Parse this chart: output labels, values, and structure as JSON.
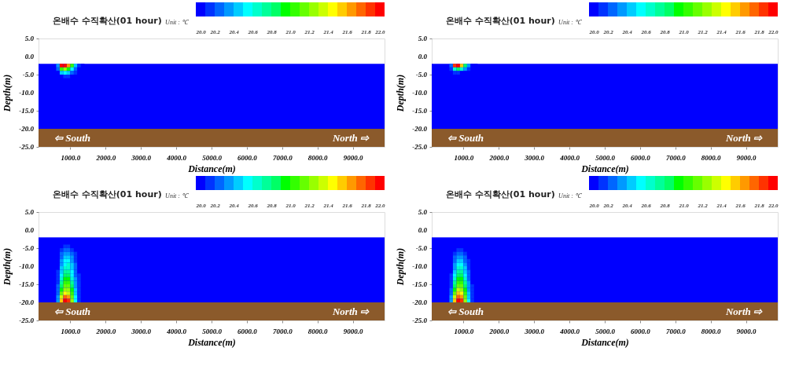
{
  "chart_data": [
    {
      "type": "heatmap",
      "title": "온배수 수직확산(01 hour)",
      "xlabel": "Distance(m)",
      "ylabel": "Depth(m)",
      "clabel": "Unit : ℃",
      "clim": [
        20.0,
        22.0
      ],
      "cticks": [
        {
          "value": 20.0,
          "label": "20.0"
        },
        {
          "value": 20.2,
          "label": "20.2"
        },
        {
          "value": 20.4,
          "label": "20.4"
        },
        {
          "value": 20.6,
          "label": "20.6"
        },
        {
          "value": 20.8,
          "label": "20.8"
        },
        {
          "value": 21.0,
          "label": "21.0"
        },
        {
          "value": 21.2,
          "label": "21.2"
        },
        {
          "value": 21.4,
          "label": "21.4"
        },
        {
          "value": 21.6,
          "label": "21.6"
        },
        {
          "value": 21.8,
          "label": "21.8"
        },
        {
          "value": 22.0,
          "label": "22.0"
        }
      ],
      "colors": [
        "#0000ff",
        "#0033ff",
        "#0066ff",
        "#0099ff",
        "#00ccff",
        "#00ffff",
        "#00ffcc",
        "#00ff99",
        "#00ff66",
        "#00ff00",
        "#33ff00",
        "#66ff00",
        "#99ff00",
        "#ccff00",
        "#ffff00",
        "#ffcc00",
        "#ff9900",
        "#ff6600",
        "#ff3300",
        "#ff0000"
      ],
      "xlim": [
        100,
        9900
      ],
      "ylim": [
        -25,
        5
      ],
      "xticks": [
        {
          "value": 1000,
          "label": "1000.0"
        },
        {
          "value": 2000,
          "label": "2000.0"
        },
        {
          "value": 3000,
          "label": "3000.0"
        },
        {
          "value": 4000,
          "label": "4000.0"
        },
        {
          "value": 5000,
          "label": "5000.0"
        },
        {
          "value": 6000,
          "label": "6000.0"
        },
        {
          "value": 7000,
          "label": "7000.0"
        },
        {
          "value": 8000,
          "label": "8000.0"
        },
        {
          "value": 9000,
          "label": "9000.0"
        }
      ],
      "yticks": [
        {
          "value": 5,
          "label": "5.0"
        },
        {
          "value": 0,
          "label": "0.0"
        },
        {
          "value": -5,
          "label": "-5.0"
        },
        {
          "value": -10,
          "label": "-10.0"
        },
        {
          "value": -15,
          "label": "-15.0"
        },
        {
          "value": -20,
          "label": "-20.0"
        },
        {
          "value": -25,
          "label": "-25.0"
        }
      ],
      "bands": [
        {
          "axis": "y",
          "from": -20,
          "to": -2,
          "color": "#0000ff"
        },
        {
          "axis": "y",
          "from": -25,
          "to": -20,
          "color": "#8b5a2b"
        }
      ],
      "annotations": [
        "⇦ South",
        "North ⇨"
      ],
      "x": [
        650,
        750,
        850,
        950,
        1050,
        1150,
        1250,
        1350
      ],
      "y": [
        -2.5,
        -3.5,
        -4.5,
        -5.5
      ],
      "cells": [
        [
          20.3,
          21.9,
          22.0,
          21.6,
          21.0,
          20.4,
          20.1,
          20.0
        ],
        [
          20.2,
          21.0,
          21.2,
          20.9,
          20.5,
          20.2,
          20.0,
          20.0
        ],
        [
          20.0,
          20.4,
          20.5,
          20.4,
          20.2,
          20.1,
          20.0,
          20.0
        ],
        [
          20.0,
          20.0,
          20.1,
          20.1,
          20.0,
          20.0,
          20.0,
          20.0
        ]
      ]
    },
    {
      "type": "heatmap",
      "title": "온배수 수직확산(01 hour)",
      "xlabel": "Distance(m)",
      "ylabel": "Depth(m)",
      "clabel": "Unit : ℃",
      "clim": [
        20.0,
        22.0
      ],
      "cticks": [
        {
          "value": 20.0,
          "label": "20.0"
        },
        {
          "value": 20.2,
          "label": "20.2"
        },
        {
          "value": 20.4,
          "label": "20.4"
        },
        {
          "value": 20.6,
          "label": "20.6"
        },
        {
          "value": 20.8,
          "label": "20.8"
        },
        {
          "value": 21.0,
          "label": "21.0"
        },
        {
          "value": 21.2,
          "label": "21.2"
        },
        {
          "value": 21.4,
          "label": "21.4"
        },
        {
          "value": 21.6,
          "label": "21.6"
        },
        {
          "value": 21.8,
          "label": "21.8"
        },
        {
          "value": 22.0,
          "label": "22.0"
        }
      ],
      "colors": [
        "#0000ff",
        "#0033ff",
        "#0066ff",
        "#0099ff",
        "#00ccff",
        "#00ffff",
        "#00ffcc",
        "#00ff99",
        "#00ff66",
        "#00ff00",
        "#33ff00",
        "#66ff00",
        "#99ff00",
        "#ccff00",
        "#ffff00",
        "#ffcc00",
        "#ff9900",
        "#ff6600",
        "#ff3300",
        "#ff0000"
      ],
      "xlim": [
        100,
        9900
      ],
      "ylim": [
        -25,
        5
      ],
      "xticks": [
        {
          "value": 1000,
          "label": "1000.0"
        },
        {
          "value": 2000,
          "label": "2000.0"
        },
        {
          "value": 3000,
          "label": "3000.0"
        },
        {
          "value": 4000,
          "label": "4000.0"
        },
        {
          "value": 5000,
          "label": "5000.0"
        },
        {
          "value": 6000,
          "label": "6000.0"
        },
        {
          "value": 7000,
          "label": "7000.0"
        },
        {
          "value": 8000,
          "label": "8000.0"
        },
        {
          "value": 9000,
          "label": "9000.0"
        }
      ],
      "yticks": [
        {
          "value": 5,
          "label": "5.0"
        },
        {
          "value": 0,
          "label": "0.0"
        },
        {
          "value": -5,
          "label": "-5.0"
        },
        {
          "value": -10,
          "label": "-10.0"
        },
        {
          "value": -15,
          "label": "-15.0"
        },
        {
          "value": -20,
          "label": "-20.0"
        },
        {
          "value": -25,
          "label": "-25.0"
        }
      ],
      "bands": [
        {
          "axis": "y",
          "from": -20,
          "to": -2,
          "color": "#0000ff"
        },
        {
          "axis": "y",
          "from": -25,
          "to": -20,
          "color": "#8b5a2b"
        }
      ],
      "annotations": [
        "⇦ South",
        "North ⇨"
      ],
      "x": [
        650,
        750,
        850,
        950,
        1050,
        1150,
        1250,
        1350
      ],
      "y": [
        -2.5,
        -3.5,
        -4.5,
        -5.5
      ],
      "cells": [
        [
          20.2,
          21.8,
          22.0,
          21.5,
          20.8,
          20.3,
          20.0,
          20.0
        ],
        [
          20.1,
          20.6,
          20.8,
          20.6,
          20.3,
          20.1,
          20.0,
          20.0
        ],
        [
          20.0,
          20.1,
          20.1,
          20.0,
          20.0,
          20.0,
          20.0,
          20.0
        ],
        [
          20.0,
          20.0,
          20.0,
          20.0,
          20.0,
          20.0,
          20.0,
          20.0
        ]
      ]
    },
    {
      "type": "heatmap",
      "title": "온배수 수직확산(01 hour)",
      "xlabel": "Distance(m)",
      "ylabel": "Depth(m)",
      "clabel": "Unit : ℃",
      "clim": [
        20.0,
        22.0
      ],
      "cticks": [
        {
          "value": 20.0,
          "label": "20.0"
        },
        {
          "value": 20.2,
          "label": "20.2"
        },
        {
          "value": 20.4,
          "label": "20.4"
        },
        {
          "value": 20.6,
          "label": "20.6"
        },
        {
          "value": 20.8,
          "label": "20.8"
        },
        {
          "value": 21.0,
          "label": "21.0"
        },
        {
          "value": 21.2,
          "label": "21.2"
        },
        {
          "value": 21.4,
          "label": "21.4"
        },
        {
          "value": 21.6,
          "label": "21.6"
        },
        {
          "value": 21.8,
          "label": "21.8"
        },
        {
          "value": 22.0,
          "label": "22.0"
        }
      ],
      "colors": [
        "#0000ff",
        "#0033ff",
        "#0066ff",
        "#0099ff",
        "#00ccff",
        "#00ffff",
        "#00ffcc",
        "#00ff99",
        "#00ff66",
        "#00ff00",
        "#33ff00",
        "#66ff00",
        "#99ff00",
        "#ccff00",
        "#ffff00",
        "#ffcc00",
        "#ff9900",
        "#ff6600",
        "#ff3300",
        "#ff0000"
      ],
      "xlim": [
        100,
        9900
      ],
      "ylim": [
        -25,
        5
      ],
      "xticks": [
        {
          "value": 1000,
          "label": "1000.0"
        },
        {
          "value": 2000,
          "label": "2000.0"
        },
        {
          "value": 3000,
          "label": "3000.0"
        },
        {
          "value": 4000,
          "label": "4000.0"
        },
        {
          "value": 5000,
          "label": "5000.0"
        },
        {
          "value": 6000,
          "label": "6000.0"
        },
        {
          "value": 7000,
          "label": "7000.0"
        },
        {
          "value": 8000,
          "label": "8000.0"
        },
        {
          "value": 9000,
          "label": "9000.0"
        }
      ],
      "yticks": [
        {
          "value": 5,
          "label": "5.0"
        },
        {
          "value": 0,
          "label": "0.0"
        },
        {
          "value": -5,
          "label": "-5.0"
        },
        {
          "value": -10,
          "label": "-10.0"
        },
        {
          "value": -15,
          "label": "-15.0"
        },
        {
          "value": -20,
          "label": "-20.0"
        },
        {
          "value": -25,
          "label": "-25.0"
        }
      ],
      "bands": [
        {
          "axis": "y",
          "from": -20,
          "to": -2,
          "color": "#0000ff"
        },
        {
          "axis": "y",
          "from": -25,
          "to": -20,
          "color": "#8b5a2b"
        }
      ],
      "annotations": [
        "⇦ South",
        "North ⇨"
      ],
      "x": [
        650,
        750,
        850,
        950,
        1050,
        1150,
        1250,
        1350
      ],
      "y": [
        -4.5,
        -5.5,
        -6.5,
        -7.5,
        -8.5,
        -9.5,
        -10.5,
        -11.5,
        -12.5,
        -13.5,
        -14.5,
        -15.5,
        -16.5,
        -17.5,
        -18.5,
        -19.5
      ],
      "cells": [
        [
          20.0,
          20.0,
          20.1,
          20.1,
          20.0,
          20.0,
          20.0,
          20.0
        ],
        [
          20.0,
          20.1,
          20.2,
          20.2,
          20.1,
          20.0,
          20.0,
          20.0
        ],
        [
          20.0,
          20.2,
          20.3,
          20.3,
          20.2,
          20.1,
          20.0,
          20.0
        ],
        [
          20.0,
          20.2,
          20.4,
          20.4,
          20.3,
          20.1,
          20.0,
          20.0
        ],
        [
          20.0,
          20.3,
          20.5,
          20.5,
          20.3,
          20.1,
          20.0,
          20.0
        ],
        [
          20.0,
          20.3,
          20.5,
          20.6,
          20.4,
          20.2,
          20.0,
          20.0
        ],
        [
          20.0,
          20.4,
          20.6,
          20.6,
          20.4,
          20.2,
          20.0,
          20.0
        ],
        [
          20.1,
          20.4,
          20.7,
          20.7,
          20.5,
          20.2,
          20.0,
          20.0
        ],
        [
          20.1,
          20.5,
          20.8,
          20.8,
          20.5,
          20.2,
          20.1,
          20.0
        ],
        [
          20.1,
          20.6,
          20.9,
          20.9,
          20.6,
          20.3,
          20.1,
          20.0
        ],
        [
          20.1,
          20.7,
          21.0,
          21.0,
          20.7,
          20.3,
          20.1,
          20.0
        ],
        [
          20.2,
          20.8,
          21.1,
          21.1,
          20.8,
          20.3,
          20.1,
          20.0
        ],
        [
          20.2,
          20.9,
          21.2,
          21.2,
          20.9,
          20.4,
          20.1,
          20.0
        ],
        [
          20.2,
          21.1,
          21.4,
          21.3,
          21.0,
          20.4,
          20.1,
          20.0
        ],
        [
          20.3,
          21.3,
          21.7,
          21.6,
          21.1,
          20.5,
          20.1,
          20.0
        ],
        [
          20.3,
          21.5,
          21.9,
          21.8,
          21.2,
          20.5,
          20.1,
          20.0
        ]
      ]
    },
    {
      "type": "heatmap",
      "title": "온배수 수직확산(01 hour)",
      "xlabel": "Distance(m)",
      "ylabel": "Depth(m)",
      "clabel": "Unit : ℃",
      "clim": [
        20.0,
        22.0
      ],
      "cticks": [
        {
          "value": 20.0,
          "label": "20.0"
        },
        {
          "value": 20.2,
          "label": "20.2"
        },
        {
          "value": 20.4,
          "label": "20.4"
        },
        {
          "value": 20.6,
          "label": "20.6"
        },
        {
          "value": 20.8,
          "label": "20.8"
        },
        {
          "value": 21.0,
          "label": "21.0"
        },
        {
          "value": 21.2,
          "label": "21.2"
        },
        {
          "value": 21.4,
          "label": "21.4"
        },
        {
          "value": 21.6,
          "label": "21.6"
        },
        {
          "value": 21.8,
          "label": "21.8"
        },
        {
          "value": 22.0,
          "label": "22.0"
        }
      ],
      "colors": [
        "#0000ff",
        "#0033ff",
        "#0066ff",
        "#0099ff",
        "#00ccff",
        "#00ffff",
        "#00ffcc",
        "#00ff99",
        "#00ff66",
        "#00ff00",
        "#33ff00",
        "#66ff00",
        "#99ff00",
        "#ccff00",
        "#ffff00",
        "#ffcc00",
        "#ff9900",
        "#ff6600",
        "#ff3300",
        "#ff0000"
      ],
      "xlim": [
        100,
        9900
      ],
      "ylim": [
        -25,
        5
      ],
      "xticks": [
        {
          "value": 1000,
          "label": "1000.0"
        },
        {
          "value": 2000,
          "label": "2000.0"
        },
        {
          "value": 3000,
          "label": "3000.0"
        },
        {
          "value": 4000,
          "label": "4000.0"
        },
        {
          "value": 5000,
          "label": "5000.0"
        },
        {
          "value": 6000,
          "label": "6000.0"
        },
        {
          "value": 7000,
          "label": "7000.0"
        },
        {
          "value": 8000,
          "label": "8000.0"
        },
        {
          "value": 9000,
          "label": "9000.0"
        }
      ],
      "yticks": [
        {
          "value": 5,
          "label": "5.0"
        },
        {
          "value": 0,
          "label": "0.0"
        },
        {
          "value": -5,
          "label": "-5.0"
        },
        {
          "value": -10,
          "label": "-10.0"
        },
        {
          "value": -15,
          "label": "-15.0"
        },
        {
          "value": -20,
          "label": "-20.0"
        },
        {
          "value": -25,
          "label": "-25.0"
        }
      ],
      "bands": [
        {
          "axis": "y",
          "from": -20,
          "to": -2,
          "color": "#0000ff"
        },
        {
          "axis": "y",
          "from": -25,
          "to": -20,
          "color": "#8b5a2b"
        }
      ],
      "annotations": [
        "⇦ South",
        "North ⇨"
      ],
      "x": [
        650,
        750,
        850,
        950,
        1050,
        1150,
        1250,
        1350
      ],
      "y": [
        -5.5,
        -6.5,
        -7.5,
        -8.5,
        -9.5,
        -10.5,
        -11.5,
        -12.5,
        -13.5,
        -14.5,
        -15.5,
        -16.5,
        -17.5,
        -18.5,
        -19.5
      ],
      "cells": [
        [
          20.0,
          20.0,
          20.1,
          20.1,
          20.0,
          20.0,
          20.0,
          20.0
        ],
        [
          20.0,
          20.1,
          20.2,
          20.2,
          20.1,
          20.0,
          20.0,
          20.0
        ],
        [
          20.0,
          20.2,
          20.3,
          20.3,
          20.2,
          20.0,
          20.0,
          20.0
        ],
        [
          20.0,
          20.2,
          20.4,
          20.4,
          20.2,
          20.1,
          20.0,
          20.0
        ],
        [
          20.0,
          20.3,
          20.5,
          20.5,
          20.3,
          20.1,
          20.0,
          20.0
        ],
        [
          20.0,
          20.3,
          20.6,
          20.6,
          20.4,
          20.1,
          20.0,
          20.0
        ],
        [
          20.0,
          20.4,
          20.7,
          20.7,
          20.4,
          20.2,
          20.0,
          20.0
        ],
        [
          20.1,
          20.5,
          20.8,
          20.8,
          20.5,
          20.2,
          20.0,
          20.0
        ],
        [
          20.1,
          20.6,
          20.9,
          20.9,
          20.6,
          20.2,
          20.0,
          20.0
        ],
        [
          20.1,
          20.7,
          21.0,
          21.0,
          20.7,
          20.3,
          20.0,
          20.0
        ],
        [
          20.1,
          20.8,
          21.1,
          21.1,
          20.8,
          20.3,
          20.1,
          20.0
        ],
        [
          20.2,
          20.9,
          21.3,
          21.2,
          20.9,
          20.3,
          20.1,
          20.0
        ],
        [
          20.2,
          21.1,
          21.5,
          21.4,
          21.0,
          20.4,
          20.1,
          20.0
        ],
        [
          20.3,
          21.3,
          21.7,
          21.6,
          21.1,
          20.4,
          20.1,
          20.0
        ],
        [
          20.3,
          21.5,
          21.9,
          21.8,
          21.2,
          20.5,
          20.1,
          20.0
        ]
      ]
    }
  ]
}
